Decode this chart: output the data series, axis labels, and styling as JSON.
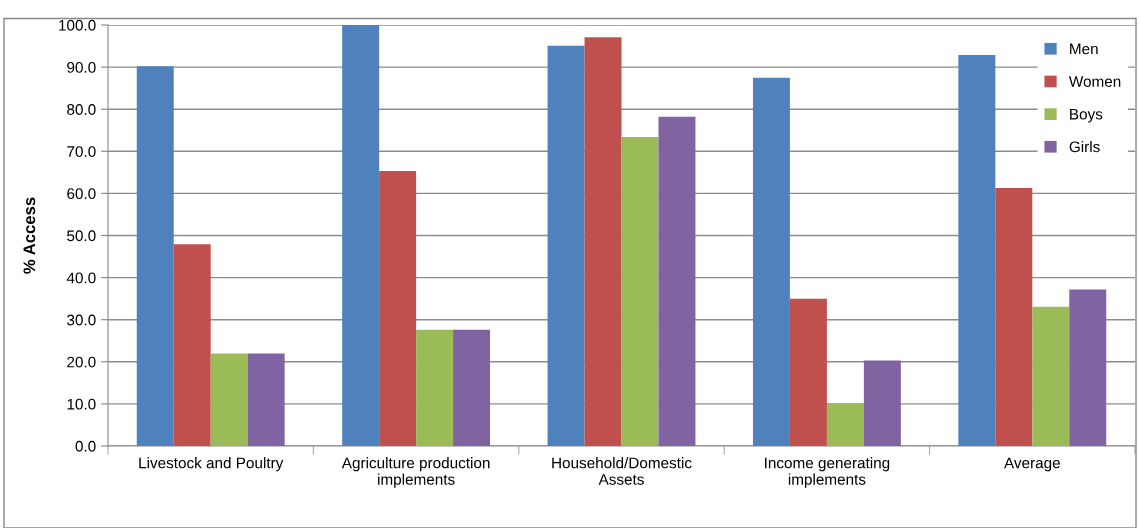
{
  "chart_data": {
    "type": "bar",
    "ylabel": "% Access",
    "categories": [
      "Livestock and Poultry",
      "Agriculture production\nimplements",
      "Household/Domestic\nAssets",
      "Income generating\nimplements",
      "Average"
    ],
    "series": [
      {
        "name": "Men",
        "color": "#4f81bd",
        "values": [
          90.2,
          100.0,
          95.1,
          87.5,
          92.9
        ]
      },
      {
        "name": "Women",
        "color": "#c0504d",
        "values": [
          47.9,
          65.3,
          97.1,
          35.0,
          61.3
        ]
      },
      {
        "name": "Boys",
        "color": "#9bbb59",
        "values": [
          22.0,
          27.6,
          73.4,
          10.1,
          33.1
        ]
      },
      {
        "name": "Girls",
        "color": "#8064a2",
        "values": [
          22.0,
          27.6,
          78.2,
          20.3,
          37.2
        ]
      }
    ],
    "ylim": [
      0,
      100
    ],
    "yticks": [
      {
        "value": 0,
        "label": "0.0"
      },
      {
        "value": 10,
        "label": "10.0"
      },
      {
        "value": 20,
        "label": "20.0"
      },
      {
        "value": 30,
        "label": "30.0"
      },
      {
        "value": 40,
        "label": "40.0"
      },
      {
        "value": 50,
        "label": "50.0"
      },
      {
        "value": 60,
        "label": "60.0"
      },
      {
        "value": 70,
        "label": "70.0"
      },
      {
        "value": 80,
        "label": "80.0"
      },
      {
        "value": 90,
        "label": "90.0"
      },
      {
        "value": 100,
        "label": "100.0"
      }
    ],
    "grid": "y",
    "legend": "top right"
  }
}
